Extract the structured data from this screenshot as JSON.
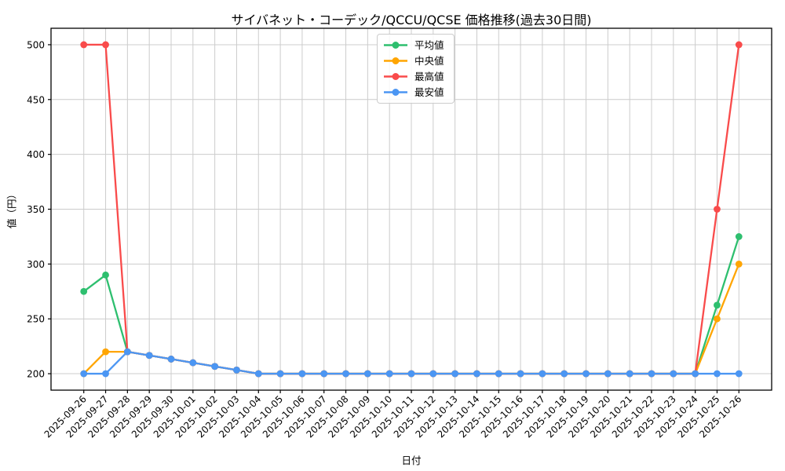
{
  "chart_data": {
    "type": "line",
    "title": "サイバネット・コーデック/QCCU/QCSE 価格推移(過去30日間)",
    "xlabel": "日付",
    "ylabel": "値（円）",
    "grid": true,
    "legend_position": "upper center",
    "x": [
      "2025-09-26",
      "2025-09-27",
      "2025-09-28",
      "2025-09-29",
      "2025-09-30",
      "2025-10-01",
      "2025-10-02",
      "2025-10-03",
      "2025-10-04",
      "2025-10-05",
      "2025-10-06",
      "2025-10-07",
      "2025-10-08",
      "2025-10-09",
      "2025-10-10",
      "2025-10-11",
      "2025-10-12",
      "2025-10-13",
      "2025-10-14",
      "2025-10-15",
      "2025-10-16",
      "2025-10-17",
      "2025-10-18",
      "2025-10-19",
      "2025-10-20",
      "2025-10-21",
      "2025-10-22",
      "2025-10-23",
      "2025-10-24",
      "2025-10-25",
      "2025-10-26"
    ],
    "yticks": [
      200,
      250,
      300,
      350,
      400,
      450,
      500
    ],
    "ylim": [
      185,
      515
    ],
    "xlim_margin": 1.5,
    "series": [
      {
        "key": "mean",
        "name": "平均値",
        "color": "#2ebf6f",
        "values": [
          275,
          290,
          220,
          216.67,
          213.33,
          210,
          206.67,
          203.33,
          200,
          200,
          200,
          200,
          200,
          200,
          200,
          200,
          200,
          200,
          200,
          200,
          200,
          200,
          200,
          200,
          200,
          200,
          200,
          200,
          200,
          262.5,
          325
        ]
      },
      {
        "key": "median",
        "name": "中央値",
        "color": "#ffa502",
        "values": [
          200,
          220,
          220,
          216.67,
          213.33,
          210,
          206.67,
          203.33,
          200,
          200,
          200,
          200,
          200,
          200,
          200,
          200,
          200,
          200,
          200,
          200,
          200,
          200,
          200,
          200,
          200,
          200,
          200,
          200,
          200,
          250,
          300
        ]
      },
      {
        "key": "max",
        "name": "最高値",
        "color": "#f94b4b",
        "values": [
          500,
          500,
          220,
          216.67,
          213.33,
          210,
          206.67,
          203.33,
          200,
          200,
          200,
          200,
          200,
          200,
          200,
          200,
          200,
          200,
          200,
          200,
          200,
          200,
          200,
          200,
          200,
          200,
          200,
          200,
          200,
          350,
          500
        ]
      },
      {
        "key": "min",
        "name": "最安値",
        "color": "#4b96f3",
        "values": [
          200,
          200,
          220,
          216.67,
          213.33,
          210,
          206.67,
          203.33,
          200,
          200,
          200,
          200,
          200,
          200,
          200,
          200,
          200,
          200,
          200,
          200,
          200,
          200,
          200,
          200,
          200,
          200,
          200,
          200,
          200,
          200,
          200
        ]
      }
    ],
    "colors": {
      "grid": "#cccccc",
      "axis": "#000000",
      "tick_text": "#000000",
      "background": "#ffffff"
    }
  }
}
